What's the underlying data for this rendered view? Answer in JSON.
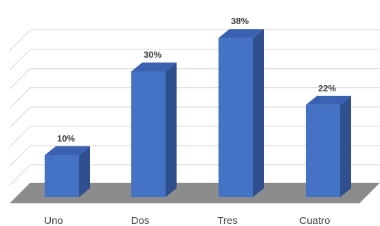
{
  "chart_data": {
    "type": "bar",
    "categories": [
      "Uno",
      "Dos",
      "Tres",
      "Cuatro"
    ],
    "values": [
      10,
      30,
      38,
      22
    ],
    "data_labels": [
      "10%",
      "30%",
      "38%",
      "22%"
    ],
    "unit": "%",
    "ylim": [
      0,
      40
    ],
    "grid": true,
    "three_d": true,
    "title": "",
    "xlabel": "",
    "ylabel": "",
    "colors": {
      "bar_front": "#4472c4",
      "bar_side": "#2f4f8f",
      "bar_top": "#3a62b0",
      "floor": "#8c8c8c",
      "grid": "#d9d9d9",
      "label_text": "#404040"
    }
  }
}
